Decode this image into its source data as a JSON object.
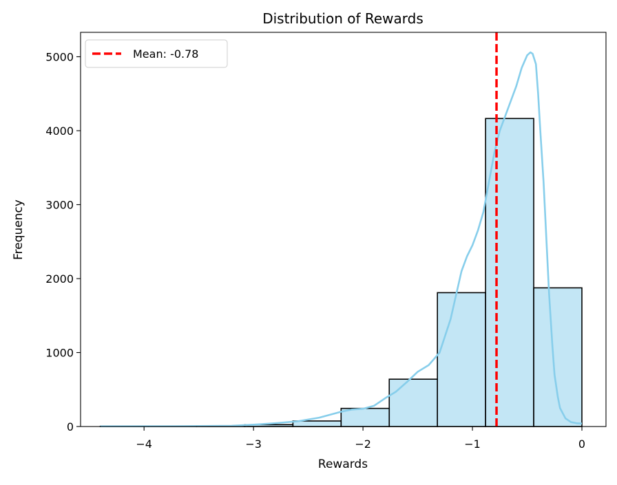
{
  "chart_data": {
    "type": "bar",
    "subtype": "histogram-with-kde",
    "title": "Distribution of Rewards",
    "xlabel": "Rewards",
    "ylabel": "Frequency",
    "xlim": [
      -4.58,
      0.22
    ],
    "ylim": [
      0,
      5330
    ],
    "x_ticks": [
      -4,
      -3,
      -2,
      -1,
      0
    ],
    "x_tick_labels": [
      "−4",
      "−3",
      "−2",
      "−1",
      "0"
    ],
    "y_ticks": [
      0,
      1000,
      2000,
      3000,
      4000,
      5000
    ],
    "y_tick_labels": [
      "0",
      "1000",
      "2000",
      "3000",
      "4000",
      "5000"
    ],
    "grid": false,
    "bin_edges": [
      -4.4,
      -3.96,
      -3.52,
      -3.08,
      -2.64,
      -2.2,
      -1.76,
      -1.32,
      -0.88,
      -0.44,
      0.0
    ],
    "values": [
      3,
      5,
      8,
      25,
      75,
      245,
      640,
      1810,
      4165,
      1875
    ],
    "bar_color": "#87ceeb",
    "bar_alpha": 0.5,
    "bar_edge_color": "#000000",
    "kde": {
      "color": "#87ceeb",
      "x": [
        -4.4,
        -3.6,
        -3.2,
        -3.0,
        -2.8,
        -2.6,
        -2.4,
        -2.2,
        -2.1,
        -2.0,
        -1.9,
        -1.8,
        -1.7,
        -1.6,
        -1.5,
        -1.4,
        -1.3,
        -1.2,
        -1.1,
        -1.05,
        -1.0,
        -0.95,
        -0.9,
        -0.85,
        -0.8,
        -0.75,
        -0.7,
        -0.65,
        -0.6,
        -0.55,
        -0.5,
        -0.47,
        -0.45,
        -0.42,
        -0.4,
        -0.38,
        -0.35,
        -0.32,
        -0.3,
        -0.27,
        -0.25,
        -0.22,
        -0.2,
        -0.15,
        -0.1,
        -0.05,
        0.0
      ],
      "y": [
        3,
        5,
        10,
        25,
        45,
        70,
        120,
        200,
        230,
        240,
        280,
        380,
        470,
        600,
        740,
        830,
        1000,
        1450,
        2100,
        2300,
        2450,
        2650,
        2900,
        3300,
        3700,
        4000,
        4200,
        4400,
        4600,
        4850,
        5020,
        5060,
        5040,
        4900,
        4500,
        4000,
        3300,
        2400,
        1800,
        1100,
        700,
        400,
        250,
        110,
        60,
        45,
        40
      ]
    },
    "mean_line": {
      "value": -0.78,
      "label": "Mean: -0.78",
      "color": "#ff0000",
      "style": "dashed"
    },
    "legend": {
      "position": "top-left",
      "entries": [
        "Mean: -0.78"
      ]
    }
  }
}
